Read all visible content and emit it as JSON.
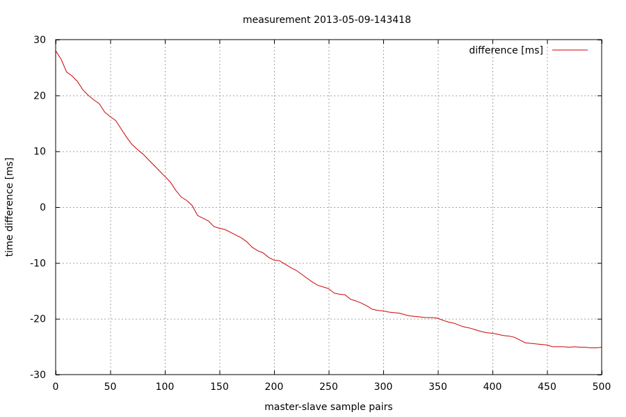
{
  "chart_data": {
    "type": "line",
    "title": "measurement 2013-05-09-143418",
    "xlabel": "master-slave sample pairs",
    "ylabel": "time difference [ms]",
    "xlim": [
      0,
      500
    ],
    "ylim": [
      -30,
      30
    ],
    "xticks": [
      0,
      50,
      100,
      150,
      200,
      250,
      300,
      350,
      400,
      450,
      500
    ],
    "yticks": [
      -30,
      -20,
      -10,
      0,
      10,
      20,
      30
    ],
    "grid": true,
    "legend_position": "top-right",
    "series": [
      {
        "name": "difference [ms]",
        "color": "#cc0000",
        "x": [
          0,
          5,
          10,
          15,
          20,
          25,
          30,
          35,
          40,
          45,
          50,
          55,
          60,
          65,
          70,
          75,
          80,
          85,
          90,
          95,
          100,
          105,
          110,
          115,
          120,
          125,
          130,
          135,
          140,
          145,
          150,
          155,
          160,
          165,
          170,
          175,
          180,
          185,
          190,
          195,
          200,
          205,
          210,
          215,
          220,
          225,
          230,
          235,
          240,
          245,
          250,
          255,
          260,
          265,
          270,
          275,
          280,
          285,
          290,
          295,
          300,
          305,
          310,
          315,
          320,
          325,
          330,
          335,
          340,
          345,
          350,
          355,
          360,
          365,
          370,
          375,
          380,
          385,
          390,
          395,
          400,
          405,
          410,
          415,
          420,
          425,
          430,
          435,
          440,
          445,
          450,
          455,
          460,
          465,
          470,
          475,
          480,
          485,
          490,
          495,
          500
        ],
        "y": [
          28.0,
          26.5,
          24.2,
          23.5,
          22.5,
          21.0,
          20.0,
          19.2,
          18.5,
          17.0,
          16.2,
          15.5,
          14.0,
          12.5,
          11.2,
          10.3,
          9.5,
          8.5,
          7.5,
          6.5,
          5.5,
          4.5,
          3.0,
          1.8,
          1.2,
          0.3,
          -1.5,
          -2.0,
          -2.5,
          -3.5,
          -3.8,
          -4.0,
          -4.5,
          -5.0,
          -5.5,
          -6.2,
          -7.2,
          -7.8,
          -8.2,
          -9.0,
          -9.5,
          -9.6,
          -10.2,
          -10.8,
          -11.3,
          -12.0,
          -12.7,
          -13.4,
          -14.0,
          -14.3,
          -14.6,
          -15.4,
          -15.6,
          -15.7,
          -16.5,
          -16.8,
          -17.2,
          -17.7,
          -18.3,
          -18.5,
          -18.6,
          -18.8,
          -18.9,
          -19.0,
          -19.3,
          -19.5,
          -19.6,
          -19.7,
          -19.8,
          -19.8,
          -19.9,
          -20.3,
          -20.6,
          -20.8,
          -21.2,
          -21.5,
          -21.7,
          -22.0,
          -22.3,
          -22.5,
          -22.6,
          -22.8,
          -23.0,
          -23.1,
          -23.3,
          -23.8,
          -24.3,
          -24.4,
          -24.5,
          -24.6,
          -24.7,
          -25.0,
          -25.0,
          -25.0,
          -25.1,
          -25.0,
          -25.1,
          -25.1,
          -25.2,
          -25.2,
          -25.1
        ]
      }
    ]
  }
}
